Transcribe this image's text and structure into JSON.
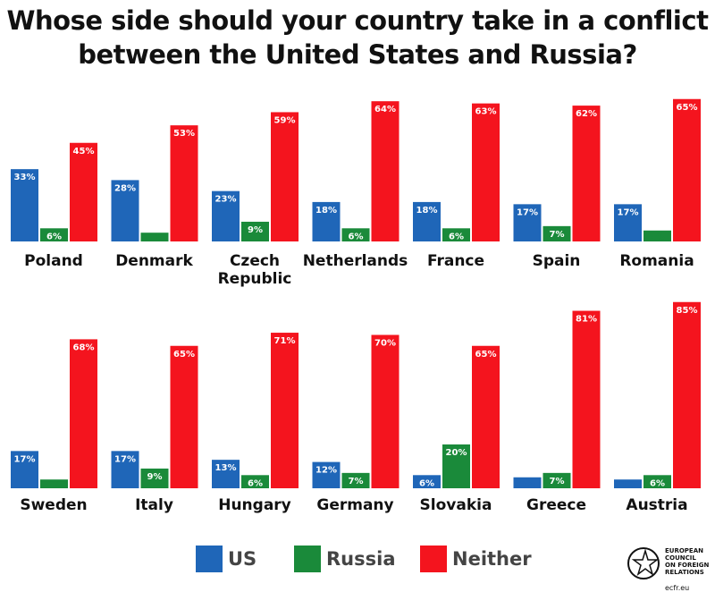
{
  "title": "Whose side should your country take in a conflict between the United States and Russia?",
  "legend": [
    {
      "label": "US",
      "color": "#1f66b8"
    },
    {
      "label": "Russia",
      "color": "#1a8a3a"
    },
    {
      "label": "Neither",
      "color": "#f4141e"
    }
  ],
  "logo": {
    "lines": [
      "EUROPEAN",
      "COUNCIL",
      "ON FOREIGN",
      "RELATIONS"
    ],
    "site": "ecfr.eu"
  },
  "chart_data": {
    "type": "bar",
    "title": "Whose side should your country take in a conflict between the United States and Russia?",
    "series_names": [
      "US",
      "Russia",
      "Neither"
    ],
    "colors": [
      "#1f66b8",
      "#1a8a3a",
      "#f4141e"
    ],
    "rows": [
      {
        "countries": [
          {
            "name": "Poland",
            "values": [
              33,
              6,
              45
            ]
          },
          {
            "name": "Denmark",
            "values": [
              28,
              4,
              53
            ]
          },
          {
            "name": "Czech Republic",
            "label_lines": [
              "Czech",
              "Republic"
            ],
            "values": [
              23,
              9,
              59
            ]
          },
          {
            "name": "Netherlands",
            "values": [
              18,
              6,
              64
            ]
          },
          {
            "name": "France",
            "values": [
              18,
              6,
              63
            ]
          },
          {
            "name": "Spain",
            "values": [
              17,
              7,
              62
            ]
          },
          {
            "name": "Romania",
            "values": [
              17,
              5,
              65
            ]
          }
        ]
      },
      {
        "countries": [
          {
            "name": "Sweden",
            "values": [
              17,
              4,
              68
            ]
          },
          {
            "name": "Italy",
            "values": [
              17,
              9,
              65
            ]
          },
          {
            "name": "Hungary",
            "values": [
              13,
              6,
              71
            ]
          },
          {
            "name": "Germany",
            "values": [
              12,
              7,
              70
            ]
          },
          {
            "name": "Slovakia",
            "values": [
              6,
              20,
              65
            ]
          },
          {
            "name": "Greece",
            "values": [
              5,
              7,
              81
            ]
          },
          {
            "name": "Austria",
            "values": [
              4,
              6,
              85
            ]
          }
        ]
      }
    ],
    "value_suffix": "%"
  }
}
